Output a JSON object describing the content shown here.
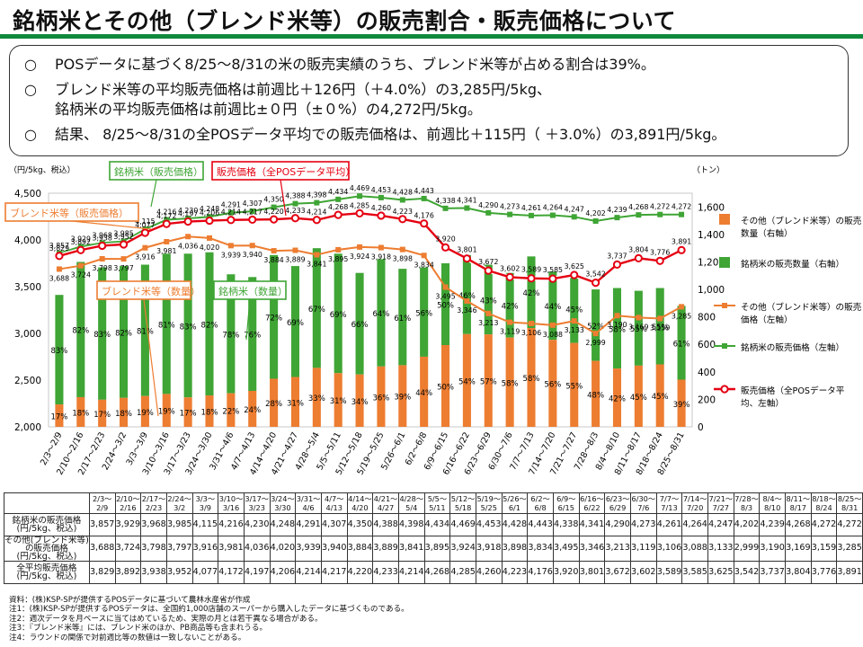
{
  "title": "銘柄米とその他（ブレンド米等）の販売割合・販売価格について",
  "summary": {
    "bullet": "○",
    "line1": "POSデータに基づく8/25～8/31の米の販売実績のうち、ブレンド米等が占める割合は39%。",
    "line2a": "ブレンド米等の平均販売価格は前週比＋126円（＋4.0%）の3,285円/5kg、",
    "line2b": "銘柄米の平均販売価格は前週比±０円（±０%）の4,272円/5kg。",
    "line3": "結果、 8/25～8/31の全POSデータ平均での販売価格は、前週比＋115円（ ＋3.0%）の3,891円/5kg。"
  },
  "chart_data": {
    "type": "bar+line",
    "left_axis_label": "（円/5kg、税込）",
    "right_axis_label": "（トン）",
    "left_ylim": [
      2000,
      4500
    ],
    "left_ticks": [
      "2,000",
      "2,500",
      "3,000",
      "3,500",
      "4,000",
      "4,500"
    ],
    "right_ylim": [
      0,
      1700
    ],
    "right_ticks": [
      "0",
      "200",
      "400",
      "600",
      "800",
      "1,000",
      "1,200",
      "1,400",
      "1,600"
    ],
    "categories": [
      "2/3～2/9",
      "2/10～2/16",
      "2/17～2/23",
      "2/24～3/2",
      "3/3～3/9",
      "3/10～3/16",
      "3/17～3/23",
      "3/24～3/30",
      "3/31～4/6",
      "4/7～4/13",
      "4/14～4/20",
      "4/21～4/27",
      "4/28～5/4",
      "5/5～5/11",
      "5/12～5/18",
      "5/19～5/25",
      "5/26～6/1",
      "6/2～6/8",
      "6/9～6/15",
      "6/16～6/22",
      "6/23～6/29",
      "6/30～7/6",
      "7/7～7/13",
      "7/14～7/20",
      "7/21～7/27",
      "7/28～8/3",
      "8/4～8/10",
      "8/11～8/17",
      "8/18～8/24",
      "8/25～8/31"
    ],
    "bar_total_tons": [
      960,
      1200,
      1160,
      1170,
      1180,
      1260,
      1260,
      1270,
      1110,
      1090,
      1250,
      1170,
      1300,
      1260,
      1120,
      1220,
      1150,
      1160,
      1190,
      1250,
      1180,
      1120,
      1240,
      1130,
      1110,
      1000,
      1010,
      990,
      1010,
      880
    ],
    "brand_share_pct": [
      83,
      82,
      83,
      82,
      81,
      81,
      83,
      82,
      78,
      76,
      72,
      69,
      67,
      69,
      66,
      64,
      61,
      56,
      50,
      46,
      43,
      42,
      42,
      44,
      45,
      52,
      58,
      55,
      55,
      61
    ],
    "other_share_pct": [
      17,
      18,
      17,
      18,
      19,
      19,
      17,
      18,
      22,
      24,
      28,
      31,
      33,
      31,
      34,
      36,
      39,
      44,
      50,
      54,
      57,
      58,
      58,
      56,
      55,
      48,
      42,
      45,
      45,
      39
    ],
    "series": [
      {
        "name": "銘柄米の販売価格",
        "values": [
          3857,
          3929,
          3968,
          3985,
          4115,
          4216,
          4230,
          4248,
          4291,
          4307,
          4350,
          4388,
          4398,
          4434,
          4469,
          4453,
          4428,
          4443,
          4338,
          4341,
          4290,
          4273,
          4261,
          4264,
          4247,
          4202,
          4239,
          4268,
          4272,
          4272
        ]
      },
      {
        "name": "その他（ブレンド米等）の販売価格",
        "values": [
          3688,
          3724,
          3798,
          3797,
          3916,
          3981,
          4036,
          4020,
          3939,
          3940,
          3884,
          3889,
          3841,
          3895,
          3924,
          3918,
          3898,
          3834,
          3495,
          3346,
          3213,
          3119,
          3106,
          3088,
          3133,
          2999,
          3190,
          3169,
          3159,
          3285
        ]
      },
      {
        "name": "全平均販売価格",
        "values": [
          3829,
          3892,
          3938,
          3952,
          4077,
          4172,
          4197,
          4206,
          4214,
          4217,
          4220,
          4233,
          4214,
          4268,
          4285,
          4260,
          4223,
          4176,
          3920,
          3801,
          3672,
          3602,
          3589,
          3585,
          3625,
          3542,
          3737,
          3804,
          3776,
          3891
        ]
      }
    ],
    "legend": [
      "その他（ブレンド米等）の販売数量（右軸）",
      "銘柄米の販売数量（右軸）",
      "その他（ブレンド米等）の販売価格（左軸）",
      "銘柄米の販売価格（左軸）",
      "販売価格（全POSデータ平均、左軸）"
    ],
    "callouts": {
      "brand_price": "銘柄米（販売価格）",
      "total_price": "販売価格（全POSデータ平均）",
      "blend_price": "ブレンド米等（販売価格）",
      "blend_qty": "ブレンド米等（数量）",
      "brand_qty": "銘柄米（数量）"
    }
  },
  "table": {
    "header_dates": [
      [
        "2/3～",
        "2/9"
      ],
      [
        "2/10～",
        "2/16"
      ],
      [
        "2/17～",
        "2/23"
      ],
      [
        "2/24～",
        "3/2"
      ],
      [
        "3/3～",
        "3/9"
      ],
      [
        "3/10～",
        "3/16"
      ],
      [
        "3/17～",
        "3/23"
      ],
      [
        "3/24～",
        "3/30"
      ],
      [
        "3/31～",
        "4/6"
      ],
      [
        "4/7～",
        "4/13"
      ],
      [
        "4/14～",
        "4/20"
      ],
      [
        "4/21～",
        "4/27"
      ],
      [
        "4/28～",
        "5/4"
      ],
      [
        "5/5～",
        "5/11"
      ],
      [
        "5/12～",
        "5/18"
      ],
      [
        "5/19～",
        "5/25"
      ],
      [
        "5/26～",
        "6/1"
      ],
      [
        "6/2～",
        "6/8"
      ],
      [
        "6/9～",
        "6/15"
      ],
      [
        "6/16～",
        "6/22"
      ],
      [
        "6/23～",
        "6/29"
      ],
      [
        "6/30～",
        "7/6"
      ],
      [
        "7/7～",
        "7/13"
      ],
      [
        "7/14～",
        "7/20"
      ],
      [
        "7/21～",
        "7/27"
      ],
      [
        "7/28～",
        "8/3"
      ],
      [
        "8/4～",
        "8/10"
      ],
      [
        "8/11～",
        "8/17"
      ],
      [
        "8/18～",
        "8/24"
      ],
      [
        "8/25～",
        "8/31"
      ]
    ],
    "rows": [
      {
        "label1": "銘柄米の販売価格",
        "label2": "(円/5kg、税込)",
        "values": [
          "3,857",
          "3,929",
          "3,968",
          "3,985",
          "4,115",
          "4,216",
          "4,230",
          "4,248",
          "4,291",
          "4,307",
          "4,350",
          "4,388",
          "4,398",
          "4,434",
          "4,469",
          "4,453",
          "4,428",
          "4,443",
          "4,338",
          "4,341",
          "4,290",
          "4,273",
          "4,261",
          "4,264",
          "4,247",
          "4,202",
          "4,239",
          "4,268",
          "4,272",
          "4,272"
        ]
      },
      {
        "label1": "その他(ブレンド米等)",
        "label2": "の販売価格",
        "label3": "(円/5kg、税込)",
        "values": [
          "3,688",
          "3,724",
          "3,798",
          "3,797",
          "3,916",
          "3,981",
          "4,036",
          "4,020",
          "3,939",
          "3,940",
          "3,884",
          "3,889",
          "3,841",
          "3,895",
          "3,924",
          "3,918",
          "3,898",
          "3,834",
          "3,495",
          "3,346",
          "3,213",
          "3,119",
          "3,106",
          "3,088",
          "3,133",
          "2,999",
          "3,190",
          "3,169",
          "3,159",
          "3,285"
        ]
      },
      {
        "label1": "全平均販売価格",
        "label2": "(円/5kg、税込)",
        "values": [
          "3,829",
          "3,892",
          "3,938",
          "3,952",
          "4,077",
          "4,172",
          "4,197",
          "4,206",
          "4,214",
          "4,217",
          "4,220",
          "4,233",
          "4,214",
          "4,268",
          "4,285",
          "4,260",
          "4,223",
          "4,176",
          "3,920",
          "3,801",
          "3,672",
          "3,602",
          "3,589",
          "3,585",
          "3,625",
          "3,542",
          "3,737",
          "3,804",
          "3,776",
          "3,891"
        ]
      }
    ]
  },
  "notes": [
    "資料：(株)KSP-SPが提供するPOSデータに基づいて農林水産省が作成",
    "注1：(株)KSP-SPが提供するPOSデータは、全国約1,000店舗のスーパーから購入したデータに基づくものである。",
    "注2：週次データを月ベースに当てはめているため、実際の月とは若干異なる場合がある。",
    "注3：『ブレンド米等』には、ブレンド米のほか、PB商品等も含まれうる。",
    "注4：ラウンドの関係で対前週比等の数値は一致しないことがある。"
  ],
  "colors": {
    "green": "#3fa535",
    "orange": "#ed7d31",
    "red": "#e50012",
    "title_rule": "#0f8a3c"
  }
}
